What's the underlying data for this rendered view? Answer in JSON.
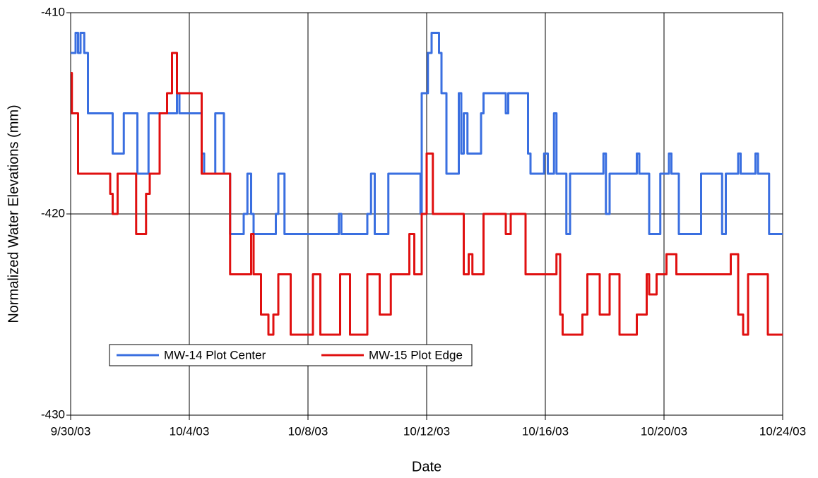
{
  "chart_data": {
    "type": "line",
    "step": "after",
    "y_label": "Normalized Water Elevations (mm)",
    "x_label": "Date",
    "xlim": [
      "2003-09-30",
      "2003-10-24"
    ],
    "xticks": [
      {
        "value": "2003-09-30",
        "label": "9/30/03"
      },
      {
        "value": "2003-10-04",
        "label": "10/4/03"
      },
      {
        "value": "2003-10-08",
        "label": "10/8/03"
      },
      {
        "value": "2003-10-12",
        "label": "10/12/03"
      },
      {
        "value": "2003-10-16",
        "label": "10/16/03"
      },
      {
        "value": "2003-10-20",
        "label": "10/20/03"
      },
      {
        "value": "2003-10-24",
        "label": "10/24/03"
      }
    ],
    "ylim": [
      -430,
      -410
    ],
    "yticks": [
      -430,
      -420,
      -410
    ],
    "grid": true,
    "legend": "lower left",
    "series": [
      {
        "name": "MW-14 Plot Center",
        "color": "#3a6fe0",
        "x": [
          "2003-09-30T00:00",
          "2003-09-30T04:00",
          "2003-09-30T06:00",
          "2003-09-30T08:00",
          "2003-09-30T11:00",
          "2003-09-30T14:00",
          "2003-10-01T10:00",
          "2003-10-01T19:00",
          "2003-10-02T06:00",
          "2003-10-02T15:00",
          "2003-10-03T14:00",
          "2003-10-03T16:00",
          "2003-10-04T10:00",
          "2003-10-04T12:00",
          "2003-10-04T21:00",
          "2003-10-05T04:00",
          "2003-10-05T09:00",
          "2003-10-05T20:00",
          "2003-10-05T23:00",
          "2003-10-06T02:00",
          "2003-10-06T04:00",
          "2003-10-06T22:00",
          "2003-10-07T00:00",
          "2003-10-07T05:00",
          "2003-10-09T01:00",
          "2003-10-09T03:00",
          "2003-10-10T00:00",
          "2003-10-10T03:00",
          "2003-10-10T06:00",
          "2003-10-10T17:00",
          "2003-10-11T19:00",
          "2003-10-11T20:00",
          "2003-10-12T01:00",
          "2003-10-12T04:00",
          "2003-10-12T10:00",
          "2003-10-12T12:00",
          "2003-10-12T16:00",
          "2003-10-13T02:00",
          "2003-10-13T04:00",
          "2003-10-13T06:00",
          "2003-10-13T09:00",
          "2003-10-13T20:00",
          "2003-10-13T22:00",
          "2003-10-14T16:00",
          "2003-10-14T18:00",
          "2003-10-15T10:00",
          "2003-10-15T12:00",
          "2003-10-15T23:00",
          "2003-10-16T02:00",
          "2003-10-16T07:00",
          "2003-10-16T09:00",
          "2003-10-16T17:00",
          "2003-10-16T20:00",
          "2003-10-17T23:00",
          "2003-10-18T01:00",
          "2003-10-18T04:00",
          "2003-10-19T02:00",
          "2003-10-19T04:00",
          "2003-10-19T12:00",
          "2003-10-19T21:00",
          "2003-10-20T04:00",
          "2003-10-20T06:00",
          "2003-10-20T12:00",
          "2003-10-21T06:00",
          "2003-10-21T23:00",
          "2003-10-22T02:00",
          "2003-10-22T12:00",
          "2003-10-22T14:00",
          "2003-10-23T02:00",
          "2003-10-23T04:00",
          "2003-10-23T13:00",
          "2003-10-24T00:00"
        ],
        "values": [
          -412,
          -411,
          -412,
          -411,
          -412,
          -415,
          -417,
          -415,
          -418,
          -415,
          -414,
          -415,
          -417,
          -418,
          -415,
          -418,
          -421,
          -420,
          -418,
          -420,
          -421,
          -420,
          -418,
          -421,
          -420,
          -421,
          -420,
          -418,
          -421,
          -418,
          -420,
          -414,
          -412,
          -411,
          -412,
          -414,
          -418,
          -414,
          -417,
          -415,
          -417,
          -415,
          -414,
          -415,
          -414,
          -417,
          -418,
          -417,
          -418,
          -415,
          -418,
          -421,
          -418,
          -417,
          -420,
          -418,
          -417,
          -418,
          -421,
          -418,
          -417,
          -418,
          -421,
          -418,
          -421,
          -418,
          -417,
          -418,
          -417,
          -418,
          -421,
          -421
        ]
      },
      {
        "name": "MW-15 Plot Edge",
        "color": "#e01010",
        "x": [
          "2003-09-30T00:00",
          "2003-09-30T01:00",
          "2003-09-30T06:00",
          "2003-10-01T08:00",
          "2003-10-01T10:00",
          "2003-10-01T14:00",
          "2003-10-02T05:00",
          "2003-10-02T13:00",
          "2003-10-02T16:00",
          "2003-10-03T00:00",
          "2003-10-03T06:00",
          "2003-10-03T10:00",
          "2003-10-03T14:00",
          "2003-10-04T10:00",
          "2003-10-05T09:00",
          "2003-10-06T02:00",
          "2003-10-06T04:00",
          "2003-10-06T10:00",
          "2003-10-06T16:00",
          "2003-10-06T20:00",
          "2003-10-07T00:00",
          "2003-10-07T10:00",
          "2003-10-08T04:00",
          "2003-10-08T10:00",
          "2003-10-09T02:00",
          "2003-10-09T10:00",
          "2003-10-10T00:00",
          "2003-10-10T10:00",
          "2003-10-10T19:00",
          "2003-10-11T10:00",
          "2003-10-11T14:00",
          "2003-10-11T20:00",
          "2003-10-12T00:00",
          "2003-10-12T05:00",
          "2003-10-13T06:00",
          "2003-10-13T10:00",
          "2003-10-13T13:00",
          "2003-10-13T22:00",
          "2003-10-14T16:00",
          "2003-10-14T20:00",
          "2003-10-15T08:00",
          "2003-10-16T09:00",
          "2003-10-16T12:00",
          "2003-10-16T14:00",
          "2003-10-17T06:00",
          "2003-10-17T10:00",
          "2003-10-17T20:00",
          "2003-10-18T04:00",
          "2003-10-18T12:00",
          "2003-10-19T02:00",
          "2003-10-19T10:00",
          "2003-10-19T12:00",
          "2003-10-19T18:00",
          "2003-10-20T02:00",
          "2003-10-20T10:00",
          "2003-10-22T06:00",
          "2003-10-22T12:00",
          "2003-10-22T16:00",
          "2003-10-22T20:00",
          "2003-10-23T12:00",
          "2003-10-24T00:00"
        ],
        "values": [
          -413,
          -415,
          -418,
          -419,
          -420,
          -418,
          -421,
          -419,
          -418,
          -415,
          -414,
          -412,
          -414,
          -418,
          -423,
          -421,
          -423,
          -425,
          -426,
          -425,
          -423,
          -426,
          -423,
          -426,
          -423,
          -426,
          -423,
          -425,
          -423,
          -421,
          -423,
          -420,
          -417,
          -420,
          -423,
          -422,
          -423,
          -420,
          -421,
          -420,
          -423,
          -422,
          -425,
          -426,
          -425,
          -423,
          -425,
          -423,
          -426,
          -425,
          -423,
          -424,
          -423,
          -422,
          -423,
          -422,
          -425,
          -426,
          -423,
          -426,
          -426
        ]
      }
    ]
  }
}
